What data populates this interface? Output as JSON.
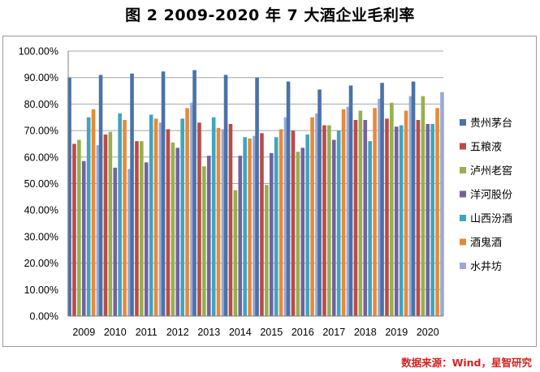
{
  "title": "图 2  2009-2020 年 7 大酒企业毛利率",
  "source": "数据来源：Wind，星智研究",
  "chart_data": {
    "type": "bar",
    "title": "图 2  2009-2020 年 7 大酒企业毛利率",
    "xlabel": "",
    "ylabel": "",
    "categories": [
      "2009",
      "2010",
      "2011",
      "2012",
      "2013",
      "2014",
      "2015",
      "2016",
      "2017",
      "2018",
      "2019",
      "2020"
    ],
    "ylim": [
      0,
      100
    ],
    "yticks": [
      "0.00%",
      "10.00%",
      "20.00%",
      "30.00%",
      "40.00%",
      "50.00%",
      "60.00%",
      "70.00%",
      "80.00%",
      "90.00%",
      "100.00%"
    ],
    "grid": true,
    "legend_position": "right",
    "series": [
      {
        "name": "贵州茅台",
        "color": "#4a72a8",
        "values": [
          90.0,
          91.0,
          91.5,
          92.3,
          92.8,
          91.0,
          90.0,
          88.5,
          85.5,
          87.0,
          88.0,
          88.5
        ]
      },
      {
        "name": "五粮液",
        "color": "#b94b47",
        "values": [
          65.0,
          68.5,
          66.0,
          70.5,
          73.0,
          72.5,
          69.0,
          70.0,
          72.0,
          74.0,
          74.5,
          74.0
        ]
      },
      {
        "name": "泸州老窖",
        "color": "#95b14f",
        "values": [
          66.5,
          69.5,
          66.0,
          65.5,
          56.5,
          47.5,
          49.5,
          62.0,
          72.0,
          77.5,
          80.5,
          83.0
        ]
      },
      {
        "name": "洋河股份",
        "color": "#7561a0",
        "values": [
          58.5,
          56.0,
          58.0,
          63.5,
          60.5,
          60.5,
          61.5,
          63.5,
          66.5,
          74.0,
          71.5,
          72.5
        ]
      },
      {
        "name": "山西汾酒",
        "color": "#3fa4c0",
        "values": [
          75.0,
          76.5,
          76.0,
          74.5,
          75.0,
          67.5,
          67.5,
          68.5,
          70.0,
          66.0,
          72.0,
          72.5
        ]
      },
      {
        "name": "酒鬼酒",
        "color": "#e58a3a",
        "values": [
          78.0,
          74.0,
          74.5,
          78.5,
          71.0,
          67.0,
          70.5,
          75.0,
          78.0,
          78.5,
          77.5,
          78.5
        ]
      },
      {
        "name": "水井坊",
        "color": "#99a9d6",
        "values": [
          64.5,
          55.5,
          73.0,
          80.5,
          70.5,
          68.0,
          75.0,
          76.5,
          79.0,
          82.0,
          83.0,
          84.5
        ]
      }
    ]
  }
}
